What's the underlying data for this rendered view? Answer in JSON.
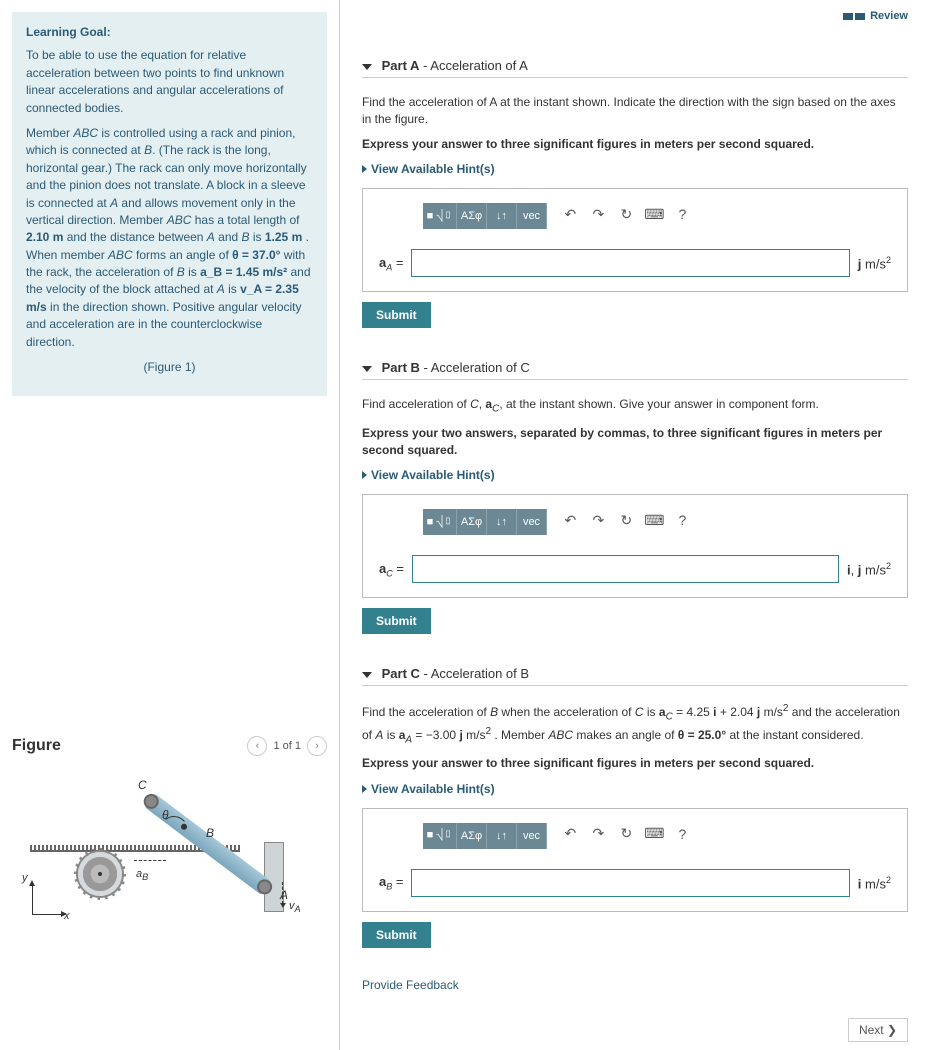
{
  "review_label": "Review",
  "learning": {
    "heading": "Learning Goal:",
    "para1": "To be able to use the equation for relative acceleration between two points to find unknown linear accelerations and angular accelerations of connected bodies.",
    "para2_pre": "Member ",
    "abc": "ABC",
    "para2_a": " is controlled using a rack and pinion, which is connected at ",
    "B": "B",
    "para2_b": ". (The rack is the long, horizontal gear.) The rack can only move horizontally and the pinion does not translate. A block in a sleeve is connected at ",
    "A": "A",
    "para2_c": " and allows movement only in the vertical direction. Member ",
    "para2_d": " has a total length of ",
    "len_total": "2.10 m",
    "para2_e": " and the distance between ",
    "para2_f": " and ",
    "para2_g": " is ",
    "len_ab": "1.25 m",
    "para2_h": " . When member ",
    "para2_i": " forms an angle of ",
    "theta_eq": "θ = 37.0°",
    "para2_j": " with the rack, the acceleration of ",
    "para2_k": " is ",
    "aB_eq": "a_B = 1.45 m/s²",
    "para2_l": " and the velocity of the block attached at ",
    "para2_m": " is ",
    "vA_eq": "v_A = 2.35 m/s",
    "para2_n": " in the direction shown. Positive angular velocity and acceleration are in the counterclockwise direction.",
    "figlink": "(Figure 1)"
  },
  "figure": {
    "title": "Figure",
    "pager": "1 of 1",
    "labels": {
      "A": "A",
      "B": "B",
      "C": "C",
      "theta": "θ",
      "y": "y",
      "x": "x",
      "aB": "a_B",
      "vA": "v_A"
    }
  },
  "parts": {
    "A": {
      "title_bold": "Part A",
      "title_rest": " - Acceleration of A",
      "prompt": "Find the acceleration of A at the instant shown. Indicate the direction with the sign based on the axes in the figure.",
      "instruct": "Express your answer to three significant figures in meters per second squared.",
      "hints": "View Available Hint(s)",
      "lhs": "a_A =",
      "units": "j m/s²",
      "submit": "Submit"
    },
    "B": {
      "title_bold": "Part B",
      "title_rest": " - Acceleration of C",
      "prompt": "Find acceleration of C, a_C, at the instant shown. Give your answer in component form.",
      "instruct": "Express your two answers, separated by commas, to three significant figures in meters per second squared.",
      "hints": "View Available Hint(s)",
      "lhs": "a_C =",
      "units": "i, j m/s²",
      "submit": "Submit"
    },
    "C": {
      "title_bold": "Part C",
      "title_rest": " - Acceleration of B",
      "prompt_a": "Find the acceleration of B when the acceleration of C is ",
      "aC_val": "a_C = 4.25 i + 2.04 j m/s²",
      "prompt_b": " and the acceleration of A is ",
      "aA_val": "a_A = −3.00 j m/s²",
      "prompt_c": " . Member ABC makes an angle of ",
      "theta_val": "θ = 25.0°",
      "prompt_d": " at the instant considered.",
      "instruct": "Express your answer to three significant figures in meters per second squared.",
      "hints": "View Available Hint(s)",
      "lhs": "a_B =",
      "units": "i m/s²",
      "submit": "Submit"
    }
  },
  "toolbar": {
    "t1": "■ ⎷▯",
    "t2": "ΑΣφ",
    "t3": "↓↑",
    "t4": "vec",
    "undo": "↶",
    "redo": "↷",
    "reset": "↻",
    "kbd": "⌨",
    "help": "?"
  },
  "footer": {
    "feedback": "Provide Feedback",
    "next": "Next ❯"
  }
}
